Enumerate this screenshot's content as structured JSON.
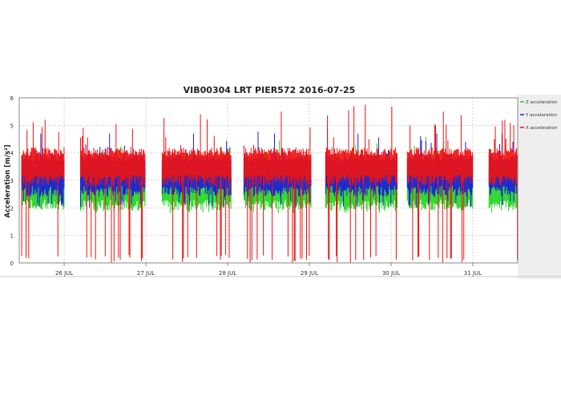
{
  "chart_data": {
    "type": "line",
    "title": "VIB00304 LRT PIER572 2016-07-25",
    "ylabel": "Acceleration [m/s²]",
    "xlabel": "",
    "ylim": [
      0,
      6
    ],
    "yticks": [
      "0",
      "1",
      "2",
      "3",
      "4",
      "5",
      "6"
    ],
    "grid": true,
    "legend_position": "right",
    "x_domain": [
      25.45,
      31.55
    ],
    "x_ticks": [
      {
        "label": "26 JUL",
        "value": 26
      },
      {
        "label": "27 JUL",
        "value": 27
      },
      {
        "label": "28 JUL",
        "value": 28
      },
      {
        "label": "29 JUL",
        "value": 29
      },
      {
        "label": "30 JUL",
        "value": 30
      },
      {
        "label": "31 JUL",
        "value": 31
      }
    ],
    "active_periods": [
      {
        "start": 25.48,
        "end": 26.0,
        "peak": 5.2
      },
      {
        "start": 26.2,
        "end": 26.99,
        "peak": 5.05
      },
      {
        "start": 27.2,
        "end": 28.05,
        "peak": 5.4
      },
      {
        "start": 28.2,
        "end": 29.03,
        "peak": 5.5
      },
      {
        "start": 29.2,
        "end": 30.08,
        "peak": 5.75
      },
      {
        "start": 30.2,
        "end": 31.0,
        "peak": 5.5
      },
      {
        "start": 31.2,
        "end": 31.55,
        "peak": 5.2
      }
    ],
    "series": [
      {
        "name": "Z acceleration",
        "color": "#1fd51f",
        "band": [
          2.3,
          3.2
        ],
        "low": 1.8
      },
      {
        "name": "Y acceleration",
        "color": "#1a1adc",
        "band": [
          2.8,
          3.7
        ],
        "low": 2.0
      },
      {
        "name": "X acceleration",
        "color": "#ee1111",
        "band": [
          3.2,
          3.9
        ],
        "low": 0.0
      }
    ]
  }
}
